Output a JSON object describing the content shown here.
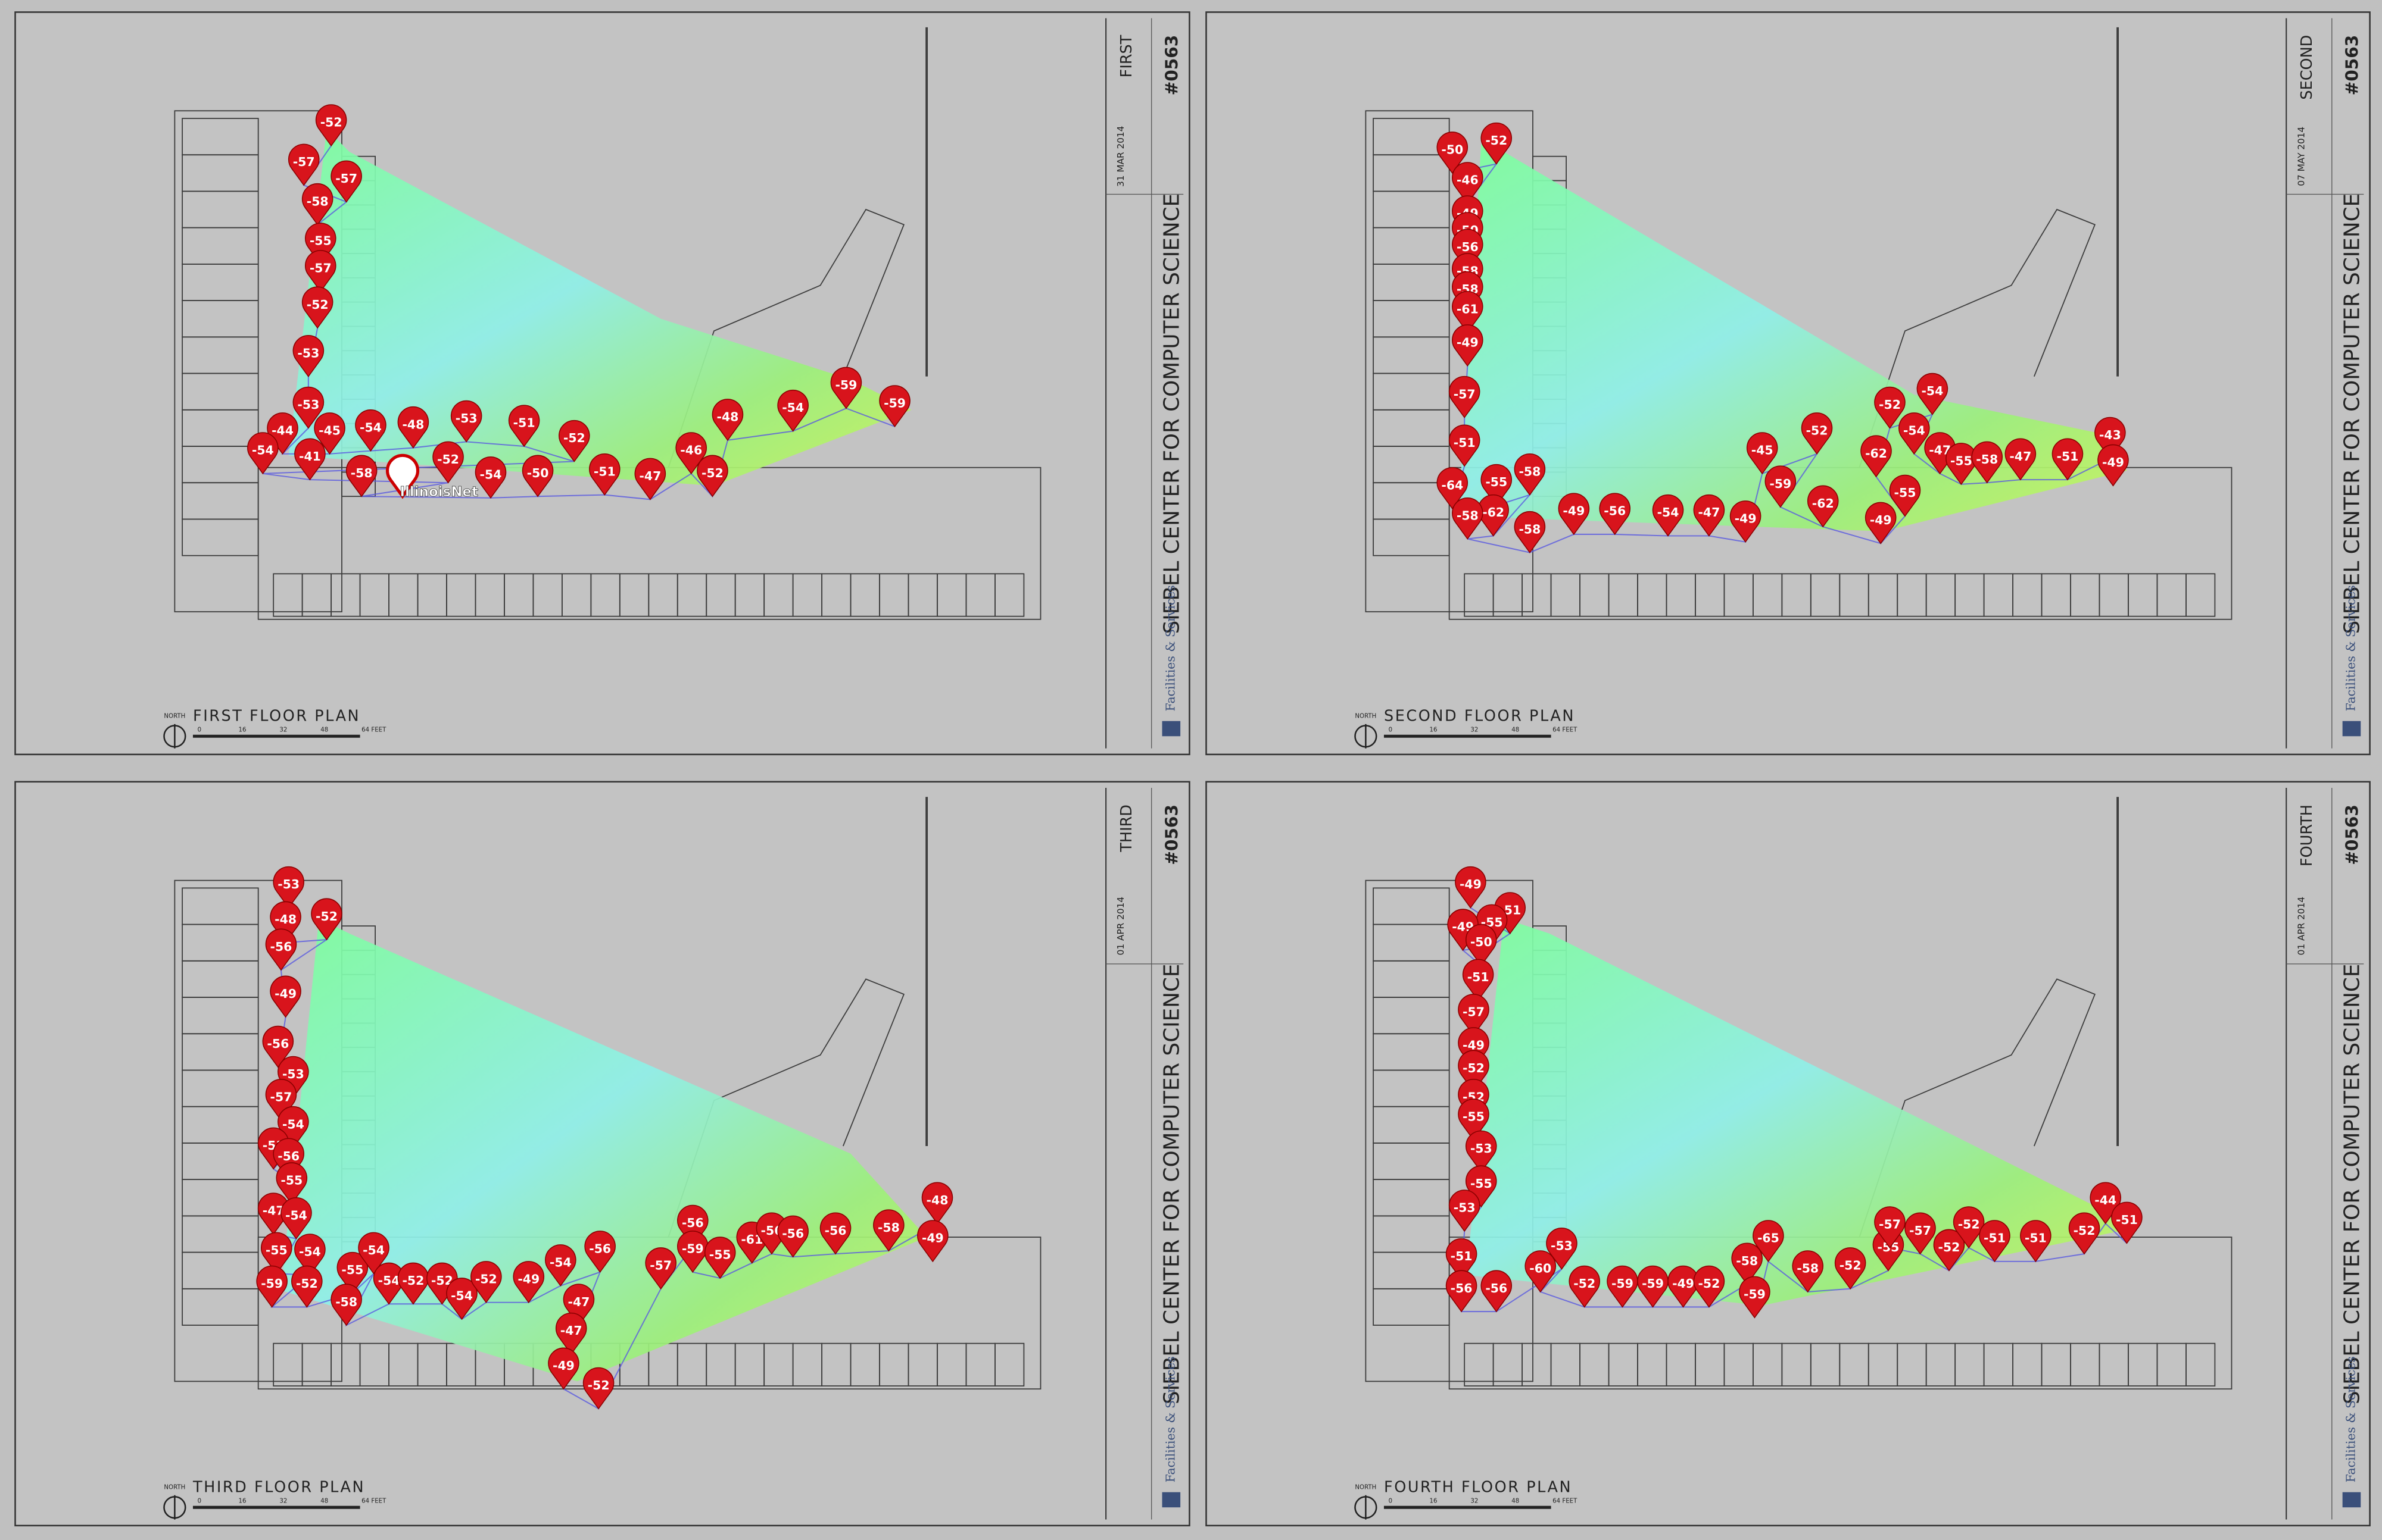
{
  "panels": [
    {
      "floor_plan_title": "FIRST FLOOR PLAN",
      "north": "NORTH",
      "scale": [
        "0",
        "16",
        "32",
        "48",
        "64 FEET"
      ],
      "sidebar": {
        "building": "SIEBEL CENTER FOR COMPUTER SCIENCE",
        "floor": "FIRST",
        "number": "#0563",
        "date": "31 MAR 2014",
        "department": "Facilities & Services"
      },
      "access_point": "IllinoisNet",
      "readings": [
        -52,
        -57,
        -57,
        -58,
        -55,
        -57,
        -52,
        -53,
        -53,
        -44,
        -45,
        -54,
        -48,
        -53,
        -51,
        -52,
        -54,
        -41,
        -52,
        -58,
        -54,
        -50,
        -51,
        -47,
        -46,
        -52,
        -48,
        -54,
        -59,
        -59
      ]
    },
    {
      "floor_plan_title": "SECOND FLOOR PLAN",
      "north": "NORTH",
      "scale": [
        "0",
        "16",
        "32",
        "48",
        "64 FEET"
      ],
      "sidebar": {
        "building": "SIEBEL CENTER FOR COMPUTER SCIENCE",
        "floor": "SECOND",
        "number": "#0563",
        "date": "07 MAY 2014",
        "department": "Facilities & Services"
      },
      "readings": [
        -50,
        -52,
        -46,
        -49,
        -50,
        -56,
        -58,
        -58,
        -61,
        -49,
        -57,
        -51,
        -64,
        -55,
        -58,
        -62,
        -58,
        -58,
        -49,
        -56,
        -54,
        -47,
        -49,
        -45,
        -52,
        -59,
        -62,
        -49,
        -55,
        -62,
        -52,
        -54,
        -54,
        -47,
        -55,
        -58,
        -47,
        -51,
        -43,
        -49
      ]
    },
    {
      "floor_plan_title": "THIRD FLOOR PLAN",
      "north": "NORTH",
      "scale": [
        "0",
        "16",
        "32",
        "48",
        "64 FEET"
      ],
      "sidebar": {
        "building": "SIEBEL CENTER FOR COMPUTER SCIENCE",
        "floor": "THIRD",
        "number": "#0563",
        "date": "01 APR 2014",
        "department": "Facilities & Services"
      },
      "readings": [
        -53,
        -48,
        -52,
        -56,
        -49,
        -56,
        -53,
        -57,
        -54,
        -51,
        -56,
        -55,
        -47,
        -54,
        -55,
        -54,
        -59,
        -52,
        -55,
        -54,
        -58,
        -54,
        -52,
        -52,
        -54,
        -52,
        -49,
        -54,
        -56,
        -47,
        -47,
        -49,
        -52,
        -57,
        -56,
        -59,
        -55,
        -61,
        -56,
        -56,
        -56,
        -58,
        -48,
        -49
      ]
    },
    {
      "floor_plan_title": "FOURTH FLOOR PLAN",
      "north": "NORTH",
      "scale": [
        "0",
        "16",
        "32",
        "48",
        "64 FEET"
      ],
      "sidebar": {
        "building": "SIEBEL CENTER FOR COMPUTER SCIENCE",
        "floor": "FOURTH",
        "number": "#0563",
        "date": "01 APR 2014",
        "department": "Facilities & Services"
      },
      "readings": [
        -49,
        -51,
        -55,
        -49,
        -50,
        -51,
        -57,
        -49,
        -52,
        -52,
        -55,
        -53,
        -55,
        -53,
        -51,
        -56,
        -56,
        -53,
        -60,
        -52,
        -59,
        -59,
        -49,
        -52,
        -58,
        -59,
        -65,
        -58,
        -52,
        -55,
        -57,
        -57,
        -52,
        -52,
        -51,
        -51,
        -52,
        -44,
        -51
      ]
    }
  ]
}
